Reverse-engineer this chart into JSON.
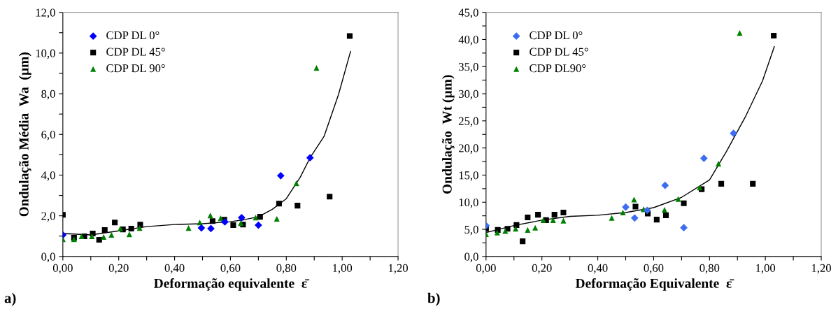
{
  "chart_data": [
    {
      "type": "scatter",
      "xlabel": "Deformação equivalente  ε̄",
      "ylabel": "Ondulação Média  Wa  (µm)",
      "annotations": [
        "a)"
      ],
      "legend": "top left",
      "grid": false,
      "xlim": [
        0,
        1.2
      ],
      "xticks": [
        {
          "value": 0,
          "label": "0,00"
        },
        {
          "value": 0.1,
          "label": null
        },
        {
          "value": 0.2,
          "label": "0,20"
        },
        {
          "value": 0.3,
          "label": null
        },
        {
          "value": 0.4,
          "label": "0,40"
        },
        {
          "value": 0.5,
          "label": null
        },
        {
          "value": 0.6,
          "label": "0,60"
        },
        {
          "value": 0.7,
          "label": null
        },
        {
          "value": 0.8,
          "label": "0,80"
        },
        {
          "value": 0.9,
          "label": null
        },
        {
          "value": 1.0,
          "label": "1,00"
        },
        {
          "value": 1.1,
          "label": null
        },
        {
          "value": 1.2,
          "label": "1,20"
        }
      ],
      "ylim": [
        0,
        12
      ],
      "yticks": [
        {
          "value": 0,
          "label": "0,0"
        },
        {
          "value": 1,
          "label": null
        },
        {
          "value": 2,
          "label": "2,0"
        },
        {
          "value": 3,
          "label": null
        },
        {
          "value": 4,
          "label": "4,0"
        },
        {
          "value": 5,
          "label": null
        },
        {
          "value": 6,
          "label": "6,0"
        },
        {
          "value": 7,
          "label": null
        },
        {
          "value": 8,
          "label": "8,0"
        },
        {
          "value": 9,
          "label": null
        },
        {
          "value": 10,
          "label": "10,0"
        },
        {
          "value": 11,
          "label": null
        },
        {
          "value": 12,
          "label": "12,0"
        }
      ],
      "series": [
        {
          "name": "CDP DL 0°",
          "color": "#0000ff",
          "marker": "diamond",
          "x": [
            0.0,
            0.496,
            0.53,
            0.58,
            0.64,
            0.7,
            0.78,
            0.885
          ],
          "values": [
            1.06,
            1.4,
            1.37,
            1.7,
            1.91,
            1.54,
            3.97,
            4.85
          ]
        },
        {
          "name": "CDP DL 45°",
          "color": "#000000",
          "marker": "square",
          "x": [
            0.0,
            0.04,
            0.077,
            0.107,
            0.13,
            0.15,
            0.186,
            0.215,
            0.245,
            0.277,
            0.536,
            0.578,
            0.61,
            0.645,
            0.706,
            0.774,
            0.84,
            0.955,
            1.027
          ],
          "values": [
            2.05,
            0.92,
            0.99,
            1.13,
            0.82,
            1.3,
            1.67,
            1.33,
            1.37,
            1.57,
            1.74,
            1.81,
            1.54,
            1.57,
            1.95,
            2.6,
            2.5,
            2.94,
            10.84
          ]
        },
        {
          "name": "CDP DL 90°",
          "color": "#008000",
          "marker": "triangle",
          "x": [
            0.0,
            0.04,
            0.067,
            0.104,
            0.146,
            0.174,
            0.206,
            0.238,
            0.275,
            0.45,
            0.49,
            0.528,
            0.565,
            0.637,
            0.69,
            0.766,
            0.836,
            0.908
          ],
          "values": [
            0.85,
            0.85,
            0.99,
            0.99,
            0.96,
            1.06,
            1.37,
            1.09,
            1.4,
            1.4,
            1.67,
            2.02,
            1.88,
            1.64,
            1.91,
            1.85,
            3.6,
            9.27
          ]
        },
        {
          "type": "line",
          "color": "#000000",
          "marker": "none",
          "line_style": "solid",
          "x": [
            0.0,
            0.1,
            0.2,
            0.3,
            0.4,
            0.5,
            0.6,
            0.65,
            0.7,
            0.75,
            0.8,
            0.85,
            0.885,
            0.935,
            0.987,
            1.03
          ],
          "values": [
            1.13,
            1.06,
            1.26,
            1.47,
            1.57,
            1.61,
            1.71,
            1.81,
            1.95,
            2.32,
            2.84,
            3.9,
            4.85,
            5.9,
            7.97,
            10.08
          ]
        }
      ]
    },
    {
      "type": "scatter",
      "xlabel": "Deformação Equivalente  ε̄",
      "ylabel": "Ondulação  Wt (µm)",
      "annotations": [
        "b)"
      ],
      "legend": "top left",
      "grid": false,
      "xlim": [
        0,
        1.2
      ],
      "xticks": [
        {
          "value": 0,
          "label": "0,00"
        },
        {
          "value": 0.1,
          "label": null
        },
        {
          "value": 0.2,
          "label": "0,20"
        },
        {
          "value": 0.3,
          "label": null
        },
        {
          "value": 0.4,
          "label": "0,40"
        },
        {
          "value": 0.5,
          "label": null
        },
        {
          "value": 0.6,
          "label": "0,60"
        },
        {
          "value": 0.7,
          "label": null
        },
        {
          "value": 0.8,
          "label": "0,80"
        },
        {
          "value": 0.9,
          "label": null
        },
        {
          "value": 1.0,
          "label": "1,00"
        },
        {
          "value": 1.1,
          "label": null
        },
        {
          "value": 1.2,
          "label": "1,20"
        }
      ],
      "ylim": [
        0,
        45
      ],
      "yticks": [
        {
          "value": 0,
          "label": "0,0"
        },
        {
          "value": 2.5,
          "label": null
        },
        {
          "value": 5,
          "label": "5,0"
        },
        {
          "value": 7.5,
          "label": null
        },
        {
          "value": 10,
          "label": "10,0"
        },
        {
          "value": 12.5,
          "label": null
        },
        {
          "value": 15,
          "label": "15,0"
        },
        {
          "value": 17.5,
          "label": null
        },
        {
          "value": 20,
          "label": "20,0"
        },
        {
          "value": 22.5,
          "label": null
        },
        {
          "value": 25,
          "label": "25,0"
        },
        {
          "value": 27.5,
          "label": null
        },
        {
          "value": 30,
          "label": "30,0"
        },
        {
          "value": 32.5,
          "label": null
        },
        {
          "value": 35,
          "label": "35,0"
        },
        {
          "value": 37.5,
          "label": null
        },
        {
          "value": 40,
          "label": "40,0"
        },
        {
          "value": 42.5,
          "label": null
        },
        {
          "value": 45,
          "label": "45,0"
        }
      ],
      "series": [
        {
          "name": "CDP DL 0°",
          "color": "#3c6cf0",
          "marker": "diamond",
          "x": [
            0.0,
            0.5,
            0.532,
            0.577,
            0.641,
            0.708,
            0.78,
            0.886
          ],
          "values": [
            5.7,
            9.1,
            7.1,
            8.5,
            13.1,
            5.3,
            18.1,
            22.7
          ]
        },
        {
          "name": "CDP DL 45°",
          "color": "#000000",
          "marker": "square",
          "x": [
            0.0,
            0.042,
            0.077,
            0.109,
            0.131,
            0.149,
            0.186,
            0.215,
            0.245,
            0.277,
            0.535,
            0.579,
            0.611,
            0.644,
            0.708,
            0.772,
            0.842,
            0.955,
            1.03
          ],
          "values": [
            5.1,
            4.9,
            5.1,
            5.8,
            2.8,
            7.2,
            7.7,
            6.7,
            7.7,
            8.1,
            9.2,
            7.9,
            6.8,
            7.6,
            9.8,
            12.4,
            13.4,
            13.4,
            40.7
          ]
        },
        {
          "name": "CDP DL90°",
          "color": "#008000",
          "marker": "triangle",
          "x": [
            0.0,
            0.04,
            0.069,
            0.106,
            0.149,
            0.176,
            0.205,
            0.24,
            0.277,
            0.45,
            0.49,
            0.53,
            0.564,
            0.639,
            0.688,
            0.765,
            0.832,
            0.908
          ],
          "values": [
            4.1,
            4.4,
            4.7,
            5.1,
            4.9,
            5.3,
            6.7,
            6.7,
            6.6,
            7.1,
            8.1,
            10.5,
            8.7,
            8.6,
            10.6,
            12.7,
            17.1,
            41.2
          ]
        },
        {
          "type": "line",
          "color": "#000000",
          "marker": "none",
          "line_style": "solid",
          "x": [
            0.0,
            0.1,
            0.2,
            0.3,
            0.4,
            0.5,
            0.6,
            0.7,
            0.8,
            0.861,
            0.928,
            0.99,
            1.032
          ],
          "values": [
            4.4,
            5.7,
            6.7,
            7.4,
            7.6,
            8.1,
            9.0,
            10.9,
            14.1,
            19.4,
            25.7,
            32.4,
            38.7
          ]
        }
      ]
    }
  ]
}
